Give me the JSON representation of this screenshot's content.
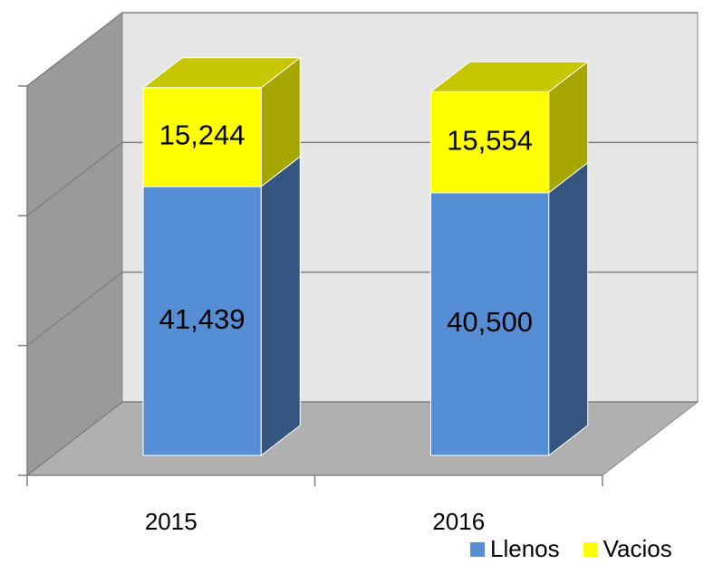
{
  "chart_data": {
    "type": "bar3d_stacked",
    "categories": [
      "2015",
      "2016"
    ],
    "series": [
      {
        "name": "Llenos",
        "color": "#558ed5",
        "values": [
          41439,
          40500
        ],
        "value_labels": [
          "41,439",
          "40,500"
        ]
      },
      {
        "name": "Vacios",
        "color": "#ffff00",
        "values": [
          15244,
          15554
        ],
        "value_labels": [
          "15,244",
          "15,554"
        ]
      }
    ],
    "ylim": [
      0,
      60000
    ],
    "yticks": [
      0,
      20000,
      40000,
      60000
    ],
    "grid": true,
    "legend": "bottom-right"
  }
}
